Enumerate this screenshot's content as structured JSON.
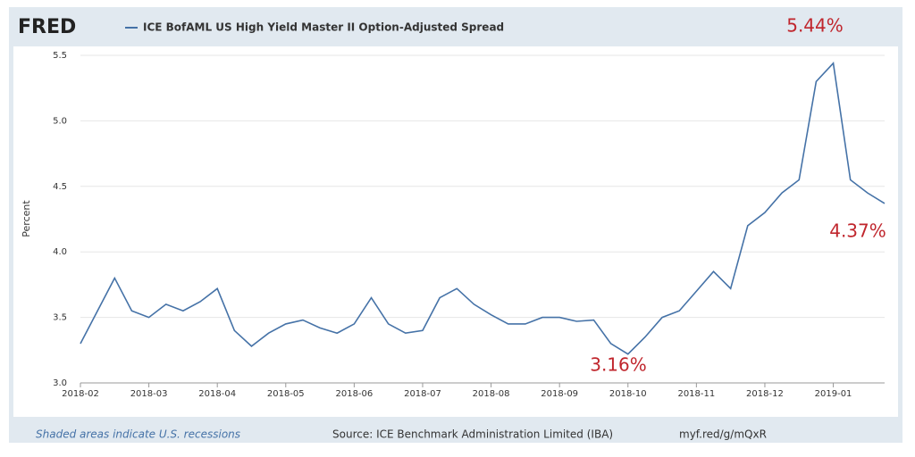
{
  "header": {
    "logo": "FRED",
    "legend": "ICE BofAML US High Yield Master II Option-Adjusted Spread"
  },
  "chart_data": {
    "type": "line",
    "categories": [
      "2018-02",
      null,
      null,
      null,
      "2018-03",
      null,
      null,
      null,
      "2018-04",
      null,
      null,
      null,
      "2018-05",
      null,
      null,
      null,
      "2018-06",
      null,
      null,
      null,
      "2018-07",
      null,
      null,
      null,
      "2018-08",
      null,
      null,
      null,
      "2018-09",
      null,
      null,
      null,
      "2018-10",
      null,
      null,
      null,
      "2018-11",
      null,
      null,
      null,
      "2018-12",
      null,
      null,
      null,
      "2019-01",
      null,
      null,
      null
    ],
    "series": [
      {
        "name": "ICE BofAML US High Yield Master II Option-Adjusted Spread",
        "color": "#4572a7",
        "values": [
          3.3,
          3.55,
          3.8,
          3.55,
          3.5,
          3.6,
          3.55,
          3.62,
          3.72,
          3.4,
          3.28,
          3.38,
          3.45,
          3.48,
          3.42,
          3.38,
          3.45,
          3.65,
          3.45,
          3.38,
          3.4,
          3.65,
          3.72,
          3.6,
          3.52,
          3.45,
          3.45,
          3.5,
          3.5,
          3.47,
          3.48,
          3.3,
          3.22,
          3.35,
          3.5,
          3.55,
          3.7,
          3.85,
          3.72,
          4.2,
          4.3,
          4.45,
          4.55,
          5.3,
          5.44,
          4.55,
          4.45,
          4.37
        ]
      }
    ],
    "ylabel": "Percent",
    "ylim": [
      3,
      5.5
    ],
    "yticks": [
      {
        "value": 3,
        "label": "3.0"
      },
      {
        "value": 3.5,
        "label": "3.5"
      },
      {
        "value": 4,
        "label": "4.0"
      },
      {
        "value": 4.5,
        "label": "4.5"
      },
      {
        "value": 5,
        "label": "5.0"
      },
      {
        "value": 5.5,
        "label": "5.5"
      }
    ],
    "grid": true,
    "annotations": [
      "5.44%",
      "3.16%",
      "4.37%"
    ]
  },
  "footer": {
    "note": "Shaded areas indicate U.S. recessions",
    "source": "Source: ICE Benchmark Administration Limited (IBA)",
    "link": "myf.red/g/mQxR"
  }
}
